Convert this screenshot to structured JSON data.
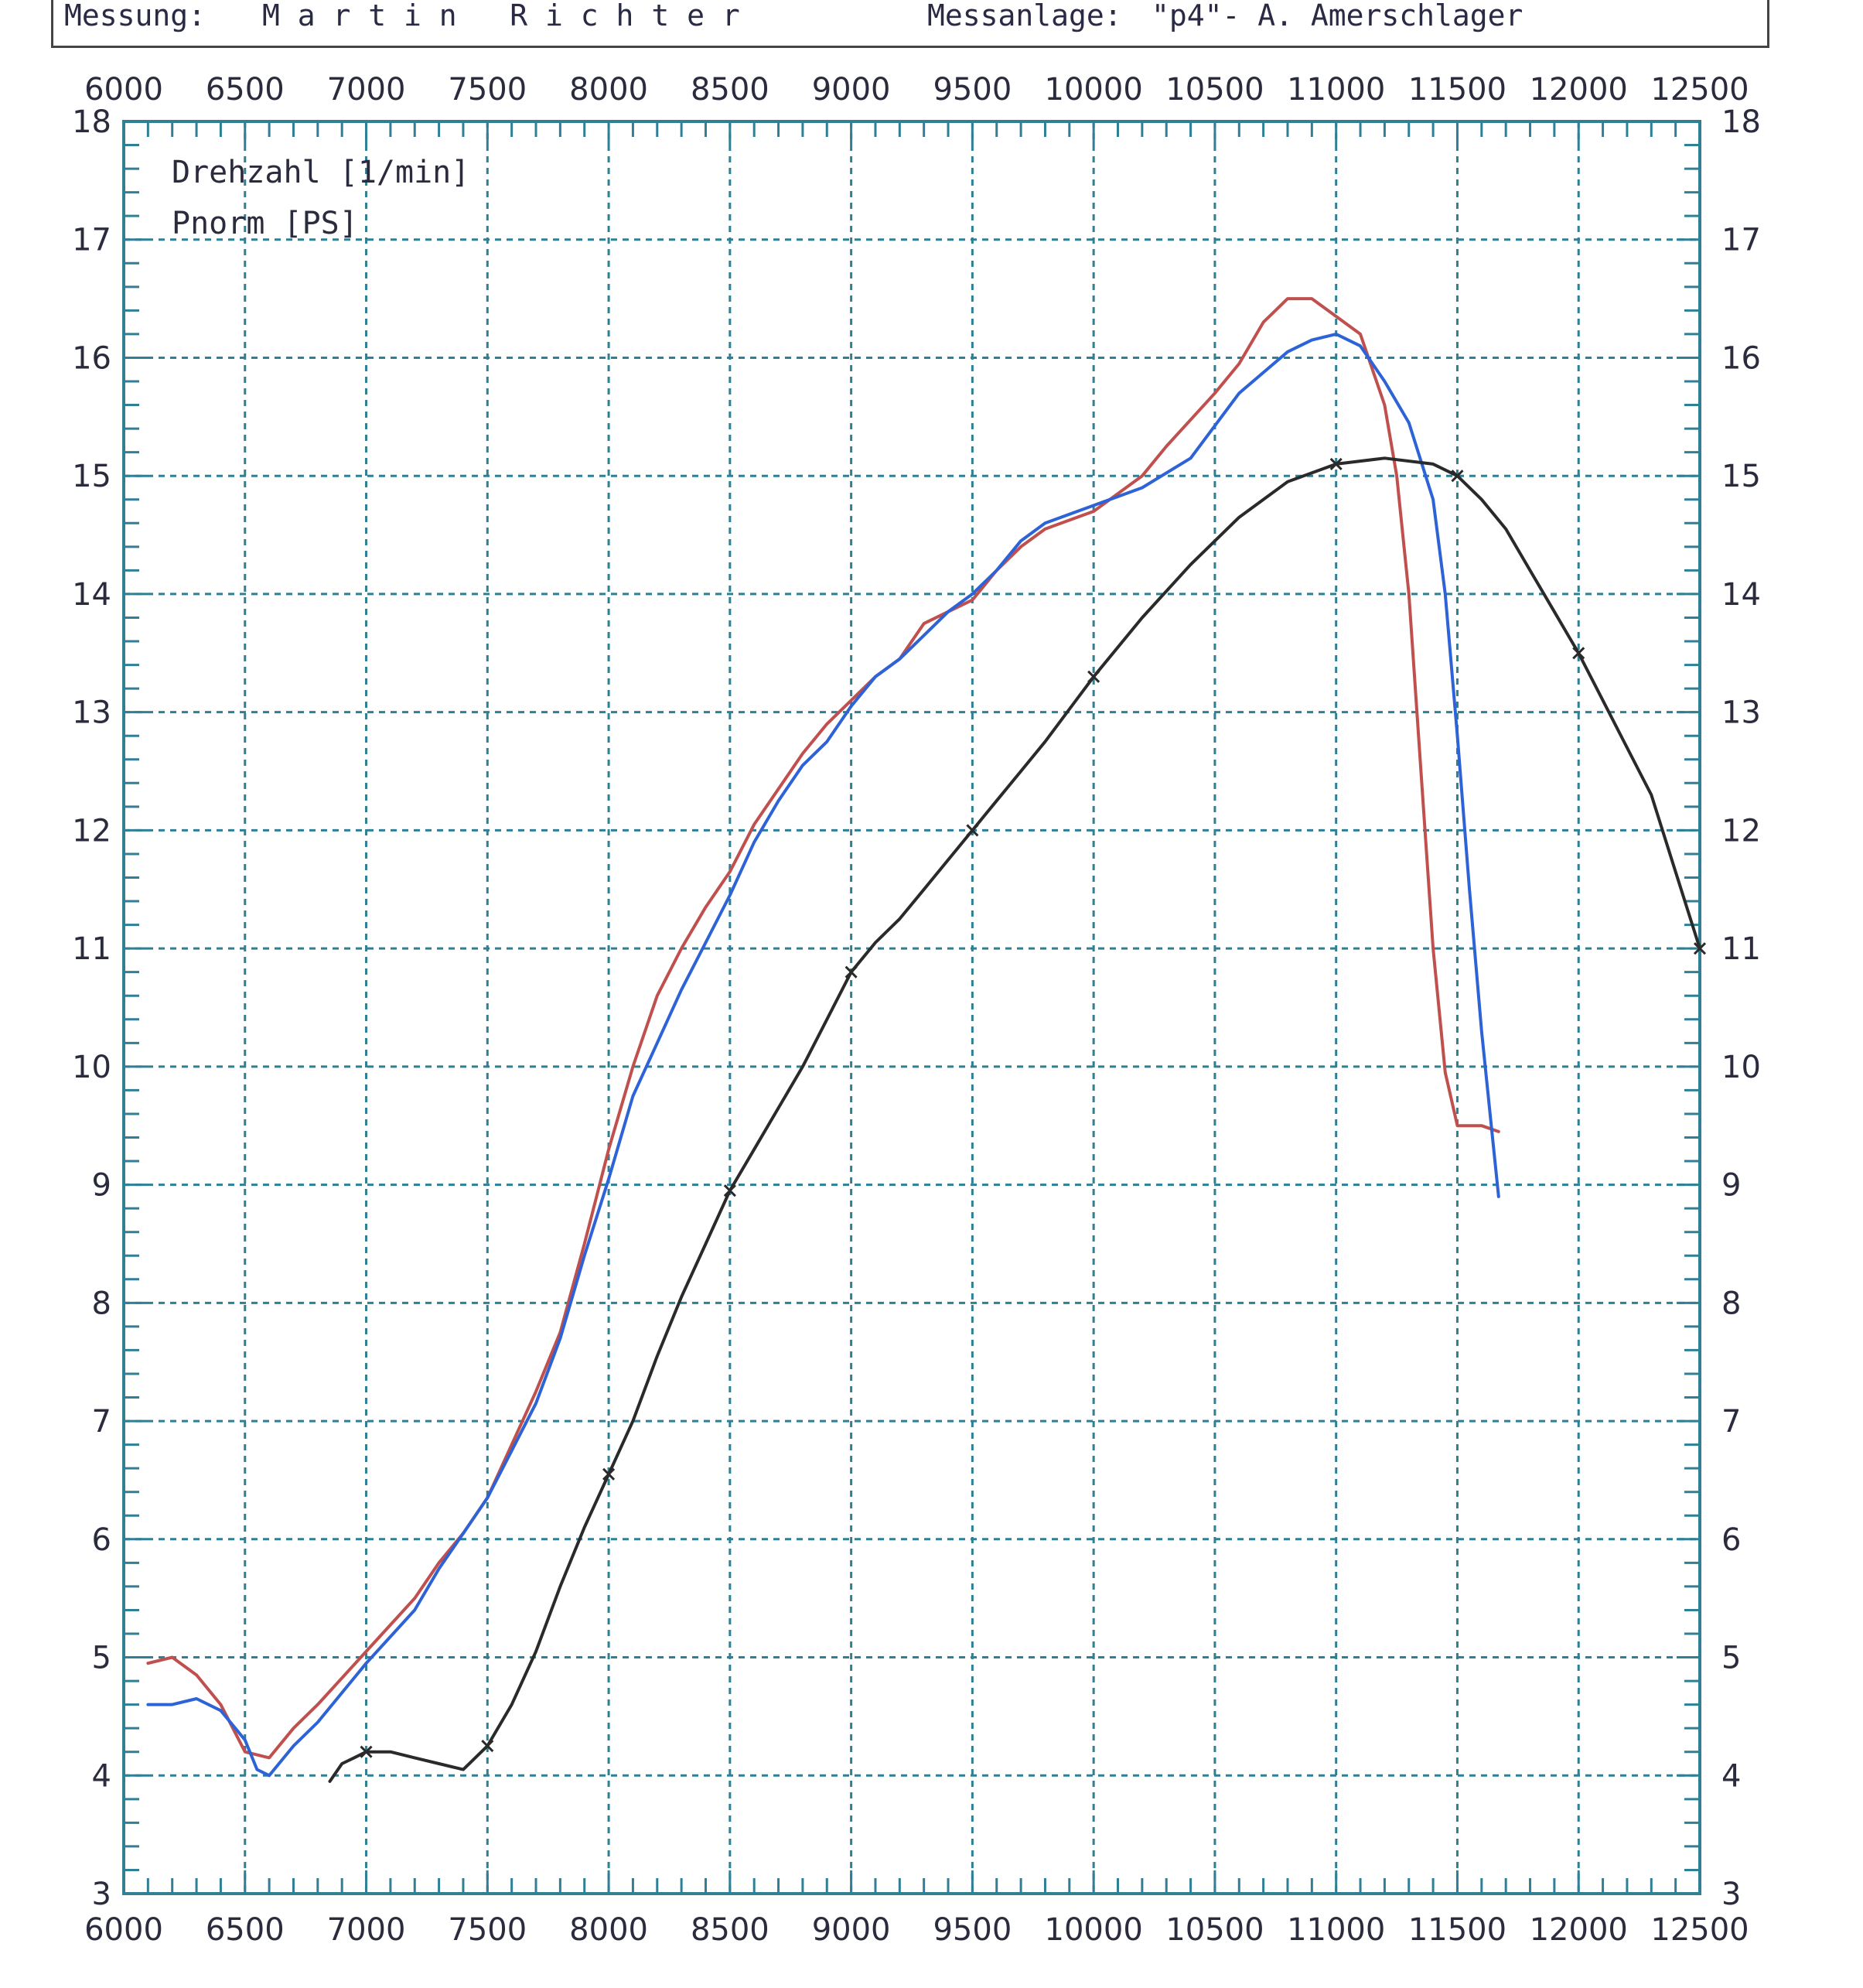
{
  "header": {
    "measurement_label": "Messung:",
    "measurement_value": "M a r t i n   R i c h t e r",
    "facility_label": "Messanlage:",
    "facility_value": "\"p4\"- A. Amerschlager"
  },
  "colors": {
    "grid": "#2f7f95",
    "frame": "#2f7f95",
    "red_series": "#c0504d",
    "blue_series": "#2d63d6",
    "black_series": "#2a2a2a",
    "text": "#2b2b3e"
  },
  "chart_data": {
    "type": "line",
    "title": "",
    "xlabel": "",
    "ylabel": "",
    "xlim": [
      6000,
      12500
    ],
    "ylim": [
      3,
      18
    ],
    "x_ticks": [
      "6000",
      "6500",
      "7000",
      "7500",
      "8000",
      "8500",
      "9000",
      "9500",
      "10000",
      "10500",
      "11000",
      "11500",
      "12000",
      "12500"
    ],
    "y_ticks": [
      "3",
      "4",
      "5",
      "6",
      "7",
      "8",
      "9",
      "10",
      "11",
      "12",
      "13",
      "14",
      "15",
      "16",
      "17",
      "18"
    ],
    "grid": true,
    "legend": [
      "Drehzahl [1/min]",
      "Pnorm [PS]"
    ],
    "legend_position": "top-left",
    "series": [
      {
        "color_key": "red_series",
        "points": [
          [
            6100,
            4.95
          ],
          [
            6200,
            5.0
          ],
          [
            6300,
            4.85
          ],
          [
            6400,
            4.6
          ],
          [
            6500,
            4.2
          ],
          [
            6600,
            4.15
          ],
          [
            6700,
            4.4
          ],
          [
            6800,
            4.6
          ],
          [
            7000,
            5.05
          ],
          [
            7200,
            5.5
          ],
          [
            7300,
            5.8
          ],
          [
            7400,
            6.05
          ],
          [
            7500,
            6.35
          ],
          [
            7600,
            6.8
          ],
          [
            7700,
            7.25
          ],
          [
            7800,
            7.75
          ],
          [
            7900,
            8.5
          ],
          [
            8000,
            9.3
          ],
          [
            8100,
            10.0
          ],
          [
            8200,
            10.6
          ],
          [
            8300,
            11.0
          ],
          [
            8400,
            11.35
          ],
          [
            8500,
            11.65
          ],
          [
            8600,
            12.05
          ],
          [
            8700,
            12.35
          ],
          [
            8800,
            12.65
          ],
          [
            8900,
            12.9
          ],
          [
            9000,
            13.1
          ],
          [
            9100,
            13.3
          ],
          [
            9200,
            13.45
          ],
          [
            9300,
            13.75
          ],
          [
            9400,
            13.85
          ],
          [
            9500,
            13.95
          ],
          [
            9600,
            14.2
          ],
          [
            9700,
            14.4
          ],
          [
            9800,
            14.55
          ],
          [
            10000,
            14.7
          ],
          [
            10200,
            15.0
          ],
          [
            10300,
            15.25
          ],
          [
            10500,
            15.7
          ],
          [
            10600,
            15.95
          ],
          [
            10700,
            16.3
          ],
          [
            10800,
            16.5
          ],
          [
            10900,
            16.5
          ],
          [
            11000,
            16.35
          ],
          [
            11100,
            16.2
          ],
          [
            11200,
            15.6
          ],
          [
            11250,
            15.0
          ],
          [
            11300,
            14.0
          ],
          [
            11350,
            12.5
          ],
          [
            11400,
            11.0
          ],
          [
            11450,
            9.95
          ],
          [
            11500,
            9.5
          ],
          [
            11600,
            9.5
          ],
          [
            11670,
            9.45
          ]
        ]
      },
      {
        "color_key": "blue_series",
        "points": [
          [
            6100,
            4.6
          ],
          [
            6200,
            4.6
          ],
          [
            6300,
            4.65
          ],
          [
            6400,
            4.55
          ],
          [
            6500,
            4.3
          ],
          [
            6550,
            4.05
          ],
          [
            6600,
            4.0
          ],
          [
            6700,
            4.25
          ],
          [
            6800,
            4.45
          ],
          [
            7000,
            4.95
          ],
          [
            7200,
            5.4
          ],
          [
            7300,
            5.75
          ],
          [
            7400,
            6.05
          ],
          [
            7500,
            6.35
          ],
          [
            7600,
            6.75
          ],
          [
            7700,
            7.15
          ],
          [
            7800,
            7.7
          ],
          [
            7900,
            8.4
          ],
          [
            8000,
            9.05
          ],
          [
            8100,
            9.75
          ],
          [
            8200,
            10.2
          ],
          [
            8300,
            10.65
          ],
          [
            8400,
            11.05
          ],
          [
            8500,
            11.45
          ],
          [
            8600,
            11.9
          ],
          [
            8700,
            12.25
          ],
          [
            8800,
            12.55
          ],
          [
            8900,
            12.75
          ],
          [
            9000,
            13.05
          ],
          [
            9100,
            13.3
          ],
          [
            9200,
            13.45
          ],
          [
            9300,
            13.65
          ],
          [
            9400,
            13.85
          ],
          [
            9500,
            14.0
          ],
          [
            9600,
            14.2
          ],
          [
            9700,
            14.45
          ],
          [
            9800,
            14.6
          ],
          [
            10000,
            14.75
          ],
          [
            10200,
            14.9
          ],
          [
            10400,
            15.15
          ],
          [
            10600,
            15.7
          ],
          [
            10800,
            16.05
          ],
          [
            10900,
            16.15
          ],
          [
            11000,
            16.2
          ],
          [
            11100,
            16.1
          ],
          [
            11200,
            15.8
          ],
          [
            11300,
            15.45
          ],
          [
            11400,
            14.8
          ],
          [
            11450,
            14.0
          ],
          [
            11500,
            12.8
          ],
          [
            11550,
            11.5
          ],
          [
            11600,
            10.3
          ],
          [
            11650,
            9.3
          ],
          [
            11670,
            8.9
          ]
        ]
      },
      {
        "color_key": "black_series",
        "points": [
          [
            6850,
            3.95
          ],
          [
            6900,
            4.1
          ],
          [
            6950,
            4.15
          ],
          [
            7000,
            4.2
          ],
          [
            7100,
            4.2
          ],
          [
            7200,
            4.15
          ],
          [
            7300,
            4.1
          ],
          [
            7400,
            4.05
          ],
          [
            7500,
            4.25
          ],
          [
            7600,
            4.6
          ],
          [
            7700,
            5.05
          ],
          [
            7800,
            5.6
          ],
          [
            7900,
            6.1
          ],
          [
            8000,
            6.55
          ],
          [
            8100,
            7.0
          ],
          [
            8200,
            7.55
          ],
          [
            8300,
            8.05
          ],
          [
            8400,
            8.5
          ],
          [
            8500,
            8.95
          ],
          [
            8600,
            9.3
          ],
          [
            8700,
            9.65
          ],
          [
            8800,
            10.0
          ],
          [
            8900,
            10.4
          ],
          [
            9000,
            10.8
          ],
          [
            9100,
            11.05
          ],
          [
            9200,
            11.25
          ],
          [
            9300,
            11.5
          ],
          [
            9400,
            11.75
          ],
          [
            9500,
            12.0
          ],
          [
            9600,
            12.25
          ],
          [
            9700,
            12.5
          ],
          [
            9800,
            12.75
          ],
          [
            10000,
            13.3
          ],
          [
            10200,
            13.8
          ],
          [
            10400,
            14.25
          ],
          [
            10600,
            14.65
          ],
          [
            10800,
            14.95
          ],
          [
            11000,
            15.1
          ],
          [
            11200,
            15.15
          ],
          [
            11400,
            15.1
          ],
          [
            11500,
            15.0
          ],
          [
            11600,
            14.8
          ],
          [
            11700,
            14.55
          ],
          [
            11800,
            14.2
          ],
          [
            11900,
            13.85
          ],
          [
            12000,
            13.5
          ],
          [
            12100,
            13.1
          ],
          [
            12200,
            12.7
          ],
          [
            12300,
            12.3
          ],
          [
            12400,
            11.65
          ],
          [
            12500,
            11.0
          ]
        ]
      }
    ]
  }
}
